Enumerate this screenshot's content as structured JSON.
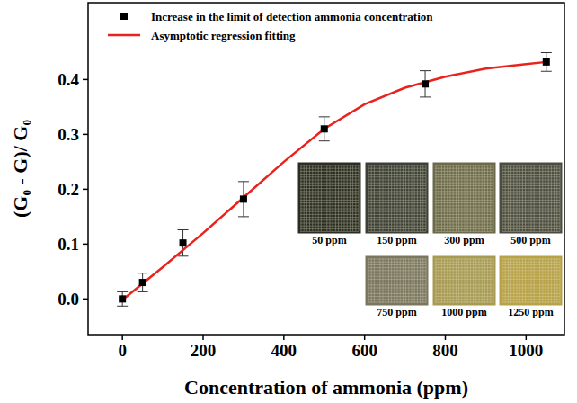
{
  "chart_data": {
    "type": "scatter",
    "x_label": "Concentration of ammonia (ppm)",
    "y_label": "(G₀ - G)/ G₀",
    "xlim": [
      -85,
      1095
    ],
    "ylim": [
      -0.065,
      0.54
    ],
    "xticks": [
      0,
      200,
      400,
      600,
      800,
      1000
    ],
    "yticks": [
      {
        "value": 0,
        "label": "0.0"
      },
      {
        "value": 0.1,
        "label": "0.1"
      },
      {
        "value": 0.2,
        "label": "0.2"
      },
      {
        "value": 0.3,
        "label": "0.3"
      },
      {
        "value": 0.4,
        "label": "0.4"
      }
    ],
    "legend": "upper left",
    "series": [
      {
        "name": "Increase in the limit of detection ammonia concentration",
        "type": "scatter",
        "marker": "square",
        "color": "#000000",
        "x": [
          0,
          50,
          150,
          300,
          500,
          750,
          1050
        ],
        "values": [
          0.0,
          0.03,
          0.102,
          0.182,
          0.31,
          0.392,
          0.432
        ],
        "errors": [
          0.013,
          0.017,
          0.024,
          0.032,
          0.022,
          0.024,
          0.017
        ]
      },
      {
        "name": "Asymptotic regression fitting",
        "type": "line",
        "line_style": "solid",
        "color": "#e8231e",
        "x": [
          0,
          100,
          200,
          300,
          400,
          500,
          600,
          700,
          800,
          900,
          1000,
          1050
        ],
        "values": [
          -0.002,
          0.058,
          0.12,
          0.185,
          0.25,
          0.31,
          0.355,
          0.385,
          0.405,
          0.42,
          0.428,
          0.432
        ]
      }
    ],
    "inset_labels": [
      "50 ppm",
      "150 ppm",
      "300 ppm",
      "500 ppm",
      "750 ppm",
      "1000 ppm",
      "1250 ppm"
    ]
  }
}
